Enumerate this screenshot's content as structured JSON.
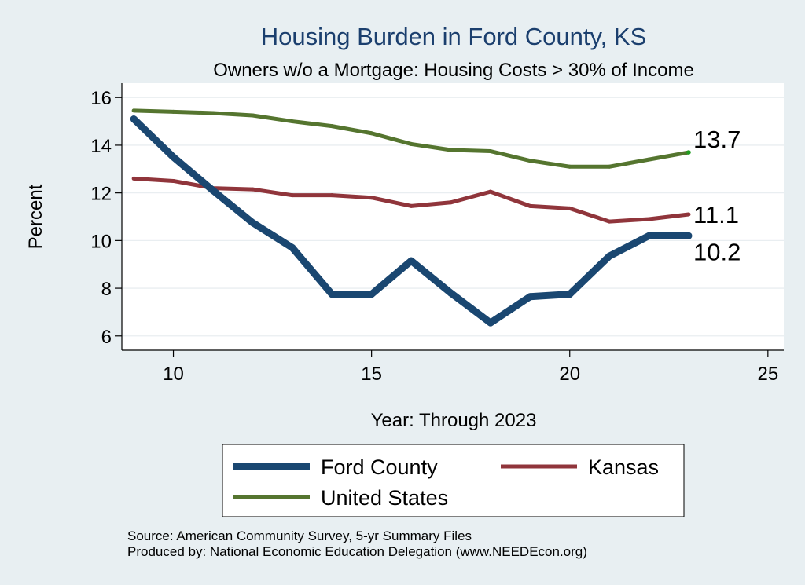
{
  "chart_data": {
    "type": "line",
    "title": "Housing Burden in Ford County, KS",
    "subtitle": "Owners w/o a Mortgage: Housing Costs > 30% of Income",
    "xlabel": "Year: Through 2023",
    "ylabel": "Percent",
    "xlim": [
      8.7,
      25.4
    ],
    "ylim": [
      5.4,
      16.6
    ],
    "xticks": [
      10,
      15,
      20,
      25
    ],
    "yticks": [
      6,
      8,
      10,
      12,
      14,
      16
    ],
    "grid": true,
    "legend_position": "bottom",
    "x": [
      9,
      10,
      11,
      12,
      13,
      14,
      15,
      16,
      17,
      18,
      19,
      20,
      21,
      22,
      23
    ],
    "series": [
      {
        "name": "Ford County",
        "color": "#1a4771",
        "values": [
          15.1,
          13.5,
          12.1,
          10.75,
          9.7,
          7.75,
          7.75,
          9.15,
          7.8,
          6.55,
          7.65,
          7.75,
          9.35,
          10.2,
          10.2
        ],
        "end_label": "10.2"
      },
      {
        "name": "Kansas",
        "color": "#90353b",
        "values": [
          12.6,
          12.5,
          12.2,
          12.15,
          11.9,
          11.9,
          11.8,
          11.45,
          11.6,
          12.05,
          11.45,
          11.35,
          10.8,
          10.9,
          11.1
        ],
        "end_label": "11.1"
      },
      {
        "name": "United States",
        "color": "#55752f",
        "values": [
          15.45,
          15.4,
          15.35,
          15.25,
          15.0,
          14.8,
          14.5,
          14.05,
          13.8,
          13.75,
          13.35,
          13.1,
          13.1,
          13.4,
          13.7
        ],
        "end_label": "13.7"
      }
    ],
    "notes": [
      "Source: American Community Survey, 5-yr Summary Files",
      "Produced by: National Economic Education Delegation (www.NEEDEcon.org)"
    ]
  }
}
